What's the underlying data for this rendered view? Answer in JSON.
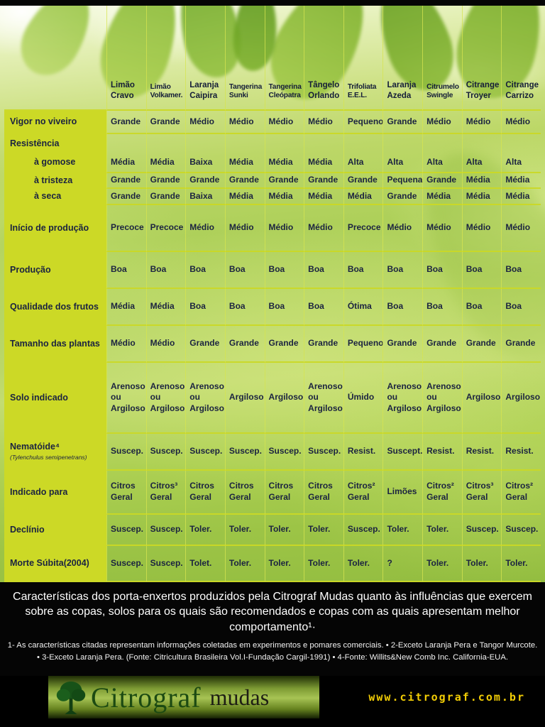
{
  "meta": {
    "accent_yellow_green": "#ccd926",
    "text_navy": "#1b2340",
    "footer_bg": "#050505",
    "url_gold": "#f2cd05"
  },
  "table": {
    "columns": [
      [
        "Limão",
        "Cravo"
      ],
      [
        "Limão",
        "Volkamer."
      ],
      [
        "Laranja",
        "Caipira"
      ],
      [
        "Tangerina",
        "Sunki"
      ],
      [
        "Tangerina",
        "Cleópatra"
      ],
      [
        "Tângelo",
        "Orlando"
      ],
      [
        "Trifoliata",
        "E.E.L."
      ],
      [
        "Laranja",
        "Azeda"
      ],
      [
        "Citrumelo",
        "Swingle"
      ],
      [
        "Citrange",
        "Troyer"
      ],
      [
        "Citrange",
        "Carrizo"
      ]
    ],
    "rows": [
      {
        "label": "Vigor no viveiro",
        "values": [
          "Grande",
          "Grande",
          "Médio",
          "Médio",
          "Médio",
          "Médio",
          "Pequeno",
          "Grande",
          "Médio",
          "Médio",
          "Médio"
        ]
      },
      {
        "label": "Resistência",
        "values": []
      },
      {
        "label": "à gomose",
        "indent": true,
        "values": [
          "Média",
          "Média",
          "Baixa",
          "Média",
          "Média",
          "Média",
          "Alta",
          "Alta",
          "Alta",
          "Alta",
          "Alta"
        ]
      },
      {
        "label": "à tristeza",
        "indent": true,
        "values": [
          "Grande",
          "Grande",
          "Grande",
          "Grande",
          "Grande",
          "Grande",
          "Grande",
          "Pequena",
          "Grande",
          "Média",
          "Média"
        ]
      },
      {
        "label": "à seca",
        "indent": true,
        "values": [
          "Grande",
          "Grande",
          "Baixa",
          "Média",
          "Média",
          "Média",
          "Média",
          "Grande",
          "Média",
          "Média",
          "Média"
        ]
      },
      {
        "label": "Início de produção",
        "values": [
          "Precoce",
          "Precoce",
          "Médio",
          "Médio",
          "Médio",
          "Médio",
          "Precoce",
          "Médio",
          "Médio",
          "Médio",
          "Médio"
        ]
      },
      {
        "label": "Produção",
        "values": [
          "Boa",
          "Boa",
          "Boa",
          "Boa",
          "Boa",
          "Boa",
          "Boa",
          "Boa",
          "Boa",
          "Boa",
          "Boa"
        ]
      },
      {
        "label": "Qualidade dos frutos",
        "values": [
          "Média",
          "Média",
          "Boa",
          "Boa",
          "Boa",
          "Boa",
          "Ótima",
          "Boa",
          "Boa",
          "Boa",
          "Boa"
        ]
      },
      {
        "label": "Tamanho das plantas",
        "values": [
          "Médio",
          "Médio",
          "Grande",
          "Grande",
          "Grande",
          "Grande",
          "Pequeno",
          "Grande",
          "Grande",
          "Grande",
          "Grande"
        ]
      },
      {
        "label": "Solo indicado",
        "values": [
          "Arenoso\nou\nArgiloso",
          "Arenoso\nou\nArgiloso",
          "Arenoso\nou\nArgiloso",
          "Argiloso",
          "Argiloso",
          "Arenoso\nou\nArgiloso",
          "Úmido",
          "Arenoso\nou\nArgiloso",
          "Arenoso\nou\nArgiloso",
          "Argiloso",
          "Argiloso"
        ]
      },
      {
        "label": "Nematóide⁴",
        "sublabel": "(Tylenchulus semipenetrans)",
        "values": [
          "Suscep.",
          "Suscep.",
          "Suscep.",
          "Suscep.",
          "Suscep.",
          "Suscep.",
          "Resist.",
          "Suscept.",
          "Resist.",
          "Resist.",
          "Resist."
        ]
      },
      {
        "label": "Indicado para",
        "values": [
          "Citros\nGeral",
          "Citros³\nGeral",
          "Citros\nGeral",
          "Citros\nGeral",
          "Citros\nGeral",
          "Citros\nGeral",
          "Citros²\nGeral",
          "Limões",
          "Citros²\nGeral",
          "Citros³\nGeral",
          "Citros²\nGeral"
        ]
      },
      {
        "label": "Declínio",
        "values": [
          "Suscep.",
          "Suscep.",
          "Toler.",
          "Toler.",
          "Toler.",
          "Toler.",
          "Suscep.",
          "Toler.",
          "Toler.",
          "Suscep.",
          "Suscep."
        ]
      },
      {
        "label": "Morte Súbita(2004)",
        "values": [
          "Suscep.",
          "Suscep.",
          "Tolet.",
          "Toler.",
          "Toler.",
          "Toler.",
          "Toler.",
          "?",
          "Toler.",
          "Toler.",
          "Toler."
        ]
      }
    ]
  },
  "footer": {
    "caption": "Características dos porta-enxertos produzidos pela Citrograf Mudas quanto às influências que exercem sobre as copas, solos para os quais são recomendados e copas com as quais apresentam melhor comportamento¹·",
    "notes": "1- As características citadas representam informações coletadas em experimentos e pomares comerciais. • 2-Exceto Laranja Pera e Tangor Murcote. • 3-Exceto Laranja Pera. (Fonte: Citricultura Brasileira Vol.I-Fundação Cargil-1991) • 4-Fonte: Willits&New Comb Inc. California-EUA."
  },
  "logo": {
    "brand": "Citrograf",
    "brand_suffix": "mudas",
    "url": "www.citrograf.com.br"
  }
}
